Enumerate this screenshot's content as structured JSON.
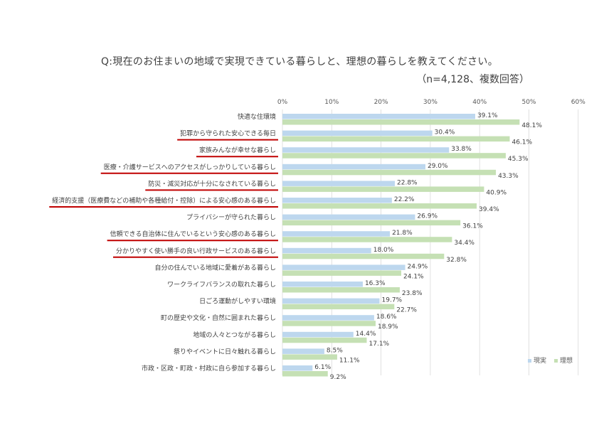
{
  "chart_data": {
    "type": "bar",
    "orientation": "horizontal",
    "title": "Q:現在のお住まいの地域で実現できている暮らしと、理想の暮らしを教えてください。",
    "subtitle": "（n=4,128、複数回答）",
    "xlim": [
      0,
      60
    ],
    "x_ticks": [
      "0%",
      "10%",
      "20%",
      "30%",
      "40%",
      "50%",
      "60%"
    ],
    "grid": "vertical",
    "legend_position": "bottom-right",
    "categories": [
      "快適な住環境",
      "犯罪から守られた安心できる毎日",
      "家族みんなが幸せな暮らし",
      "医療・介護サービスへのアクセスがしっかりしている暮らし",
      "防災・減災対応が十分になされている暮らし",
      "経済的支援（医療費などの補助や各種給付・控除）による安心感のある暮らし",
      "プライバシーが守られた暮らし",
      "信頼できる自治体に住んでいるという安心感のある暮らし",
      "分かりやすく使い勝手の良い行政サービスのある暮らし",
      "自分の住んでいる地域に愛着がある暮らし",
      "ワークライフバランスの取れた暮らし",
      "日ごろ運動がしやすい環境",
      "町の歴史や文化・自然に囲まれた暮らし",
      "地域の人々とつながる暮らし",
      "祭りやイベントに日々触れる暮らし",
      "市政・区政・町政・村政に自ら参加する暮らし"
    ],
    "underlined": [
      false,
      true,
      true,
      true,
      true,
      true,
      false,
      true,
      true,
      false,
      false,
      false,
      false,
      false,
      false,
      false
    ],
    "series": [
      {
        "name": "現実",
        "color": "#bdd7ee",
        "values": [
          39.1,
          30.4,
          33.8,
          29.0,
          22.8,
          22.2,
          26.9,
          21.8,
          18.0,
          24.9,
          16.3,
          19.7,
          18.6,
          14.4,
          8.5,
          6.1
        ],
        "labels": [
          "39.1%",
          "30.4%",
          "33.8%",
          "29.0%",
          "22.8%",
          "22.2%",
          "26.9%",
          "21.8%",
          "18.0%",
          "24.9%",
          "16.3%",
          "19.7%",
          "18.6%",
          "14.4%",
          "8.5%",
          "6.1%"
        ]
      },
      {
        "name": "理想",
        "color": "#c5e0b4",
        "values": [
          48.1,
          46.1,
          45.3,
          43.3,
          40.9,
          39.4,
          36.1,
          34.4,
          32.8,
          24.1,
          23.8,
          22.7,
          18.9,
          17.1,
          11.1,
          9.2
        ],
        "labels": [
          "48.1%",
          "46.1%",
          "45.3%",
          "43.3%",
          "40.9%",
          "39.4%",
          "36.1%",
          "34.4%",
          "32.8%",
          "24.1%",
          "23.8%",
          "22.7%",
          "18.9%",
          "17.1%",
          "11.1%",
          "9.2%"
        ]
      }
    ],
    "colors": {
      "underline": "#c00000",
      "grid": "#d9d9d9",
      "text": "#404040"
    }
  }
}
